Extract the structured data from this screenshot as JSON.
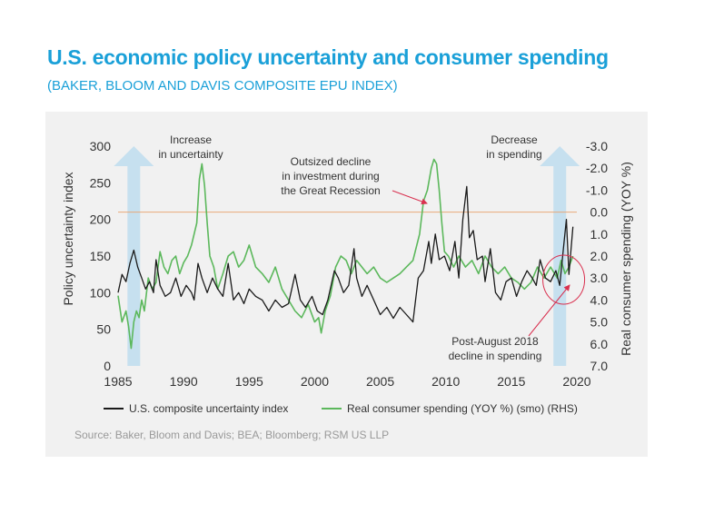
{
  "header": {
    "title": "U.S. economic policy uncertainty and consumer spending",
    "subtitle": "(BAKER, BLOOM AND DAVIS COMPOSITE EPU INDEX)"
  },
  "source": "Source: Baker, Bloom and Davis; BEA; Bloomberg; RSM US LLP",
  "colors": {
    "epu": "#1a1a1a",
    "spending": "#5cb85c",
    "arrow": "#c6e0ef",
    "refline": "#e8a878",
    "annotation_red": "#d9304f",
    "title": "#1aa0d8"
  },
  "chart_data": {
    "type": "line",
    "title": "U.S. economic policy uncertainty and consumer spending",
    "xlabel": "",
    "ylabel": "Policy uncertainty index",
    "y2label": "Real consumer spending (YOY %)",
    "xlim": [
      1985,
      2020
    ],
    "ylim": [
      0,
      300
    ],
    "y2lim": [
      7.0,
      -3.0
    ],
    "x_ticks": [
      "1985",
      "1990",
      "1995",
      "2000",
      "2005",
      "2010",
      "2015",
      "2020"
    ],
    "y_ticks": [
      "0",
      "50",
      "100",
      "150",
      "200",
      "250",
      "300"
    ],
    "y2_ticks": [
      "7.0",
      "6.0",
      "5.0",
      "4.0",
      "3.0",
      "2.0",
      "1.0",
      "0.0",
      "-1.0",
      "-2.0",
      "-3.0"
    ],
    "reference_line": {
      "axis": "y2",
      "value": 0.0
    },
    "series": [
      {
        "name": "U.S. composite uncertainty index",
        "axis": "left",
        "x": [
          1985.0,
          1985.3,
          1985.6,
          1985.9,
          1986.2,
          1986.5,
          1986.8,
          1987.1,
          1987.4,
          1987.7,
          1987.9,
          1988.2,
          1988.6,
          1989.0,
          1989.4,
          1989.8,
          1990.2,
          1990.6,
          1990.8,
          1991.1,
          1991.4,
          1991.8,
          1992.2,
          1992.6,
          1993.0,
          1993.4,
          1993.8,
          1994.2,
          1994.6,
          1995.0,
          1995.5,
          1996.0,
          1996.5,
          1997.0,
          1997.5,
          1998.0,
          1998.5,
          1998.9,
          1999.3,
          1999.8,
          2000.2,
          2000.6,
          2001.0,
          2001.5,
          2001.8,
          2002.2,
          2002.6,
          2003.0,
          2003.2,
          2003.6,
          2004.0,
          2004.5,
          2005.0,
          2005.5,
          2006.0,
          2006.5,
          2007.0,
          2007.5,
          2007.9,
          2008.3,
          2008.7,
          2008.9,
          2009.2,
          2009.5,
          2009.9,
          2010.3,
          2010.7,
          2011.0,
          2011.3,
          2011.6,
          2011.8,
          2012.1,
          2012.4,
          2012.8,
          2013.0,
          2013.4,
          2013.8,
          2014.2,
          2014.6,
          2015.0,
          2015.4,
          2015.8,
          2016.2,
          2016.6,
          2016.9,
          2017.2,
          2017.6,
          2018.0,
          2018.4,
          2018.7,
          2019.0,
          2019.2,
          2019.4,
          2019.7
        ],
        "values": [
          100,
          125,
          115,
          140,
          158,
          135,
          120,
          105,
          115,
          100,
          145,
          110,
          95,
          100,
          120,
          95,
          110,
          100,
          90,
          140,
          120,
          100,
          120,
          105,
          95,
          140,
          90,
          100,
          85,
          105,
          95,
          90,
          75,
          90,
          80,
          85,
          125,
          90,
          80,
          95,
          75,
          70,
          90,
          130,
          120,
          100,
          110,
          160,
          120,
          95,
          110,
          90,
          70,
          80,
          65,
          80,
          70,
          60,
          120,
          130,
          170,
          140,
          180,
          145,
          150,
          130,
          170,
          120,
          200,
          245,
          175,
          185,
          145,
          150,
          115,
          160,
          100,
          90,
          115,
          120,
          95,
          115,
          130,
          120,
          110,
          145,
          120,
          115,
          130,
          110,
          165,
          200,
          125,
          190
        ]
      },
      {
        "name": "Real consumer spending (YOY %) (smo) (RHS)",
        "axis": "right",
        "x": [
          1985.0,
          1985.3,
          1985.6,
          1985.8,
          1986.0,
          1986.2,
          1986.4,
          1986.6,
          1986.8,
          1987.0,
          1987.3,
          1987.6,
          1987.9,
          1988.2,
          1988.5,
          1988.8,
          1989.1,
          1989.4,
          1989.7,
          1990.0,
          1990.3,
          1990.6,
          1990.8,
          1991.0,
          1991.2,
          1991.4,
          1991.6,
          1991.8,
          1992.0,
          1992.3,
          1992.6,
          1993.0,
          1993.4,
          1993.8,
          1994.2,
          1994.6,
          1995.0,
          1995.5,
          1996.0,
          1996.5,
          1997.0,
          1997.5,
          1998.0,
          1998.5,
          1999.0,
          1999.5,
          2000.0,
          2000.3,
          2000.5,
          2000.8,
          2001.2,
          2001.6,
          2002.0,
          2002.4,
          2002.8,
          2003.2,
          2003.6,
          2004.0,
          2004.5,
          2005.0,
          2005.5,
          2006.0,
          2006.5,
          2007.0,
          2007.5,
          2008.0,
          2008.3,
          2008.6,
          2008.9,
          2009.1,
          2009.3,
          2009.5,
          2009.7,
          2009.9,
          2010.2,
          2010.6,
          2011.0,
          2011.5,
          2012.0,
          2012.5,
          2013.0,
          2013.5,
          2014.0,
          2014.5,
          2015.0,
          2015.5,
          2016.0,
          2016.5,
          2017.0,
          2017.5,
          2018.0,
          2018.5,
          2018.8,
          2019.1,
          2019.4,
          2019.7
        ],
        "values": [
          3.8,
          5.0,
          4.5,
          5.2,
          6.2,
          5.0,
          4.5,
          4.8,
          4.0,
          4.5,
          3.0,
          3.5,
          3.2,
          1.8,
          2.5,
          2.8,
          2.2,
          2.0,
          2.8,
          2.3,
          2.0,
          1.5,
          1.0,
          0.5,
          -1.5,
          -2.2,
          -1.2,
          0.5,
          2.0,
          2.5,
          3.5,
          2.8,
          2.0,
          1.8,
          2.5,
          2.2,
          1.5,
          2.5,
          2.8,
          3.2,
          2.5,
          3.5,
          4.0,
          4.5,
          4.8,
          4.2,
          5.0,
          4.8,
          5.5,
          4.5,
          3.8,
          2.5,
          2.0,
          2.2,
          2.8,
          2.2,
          2.5,
          2.8,
          2.5,
          3.0,
          3.2,
          3.0,
          2.8,
          2.5,
          2.2,
          1.0,
          -0.5,
          -1.0,
          -2.0,
          -2.4,
          -2.2,
          -1.0,
          0.5,
          1.8,
          2.0,
          2.5,
          2.0,
          2.5,
          2.2,
          2.8,
          2.0,
          2.5,
          2.8,
          2.5,
          3.0,
          3.2,
          3.5,
          3.2,
          2.5,
          3.0,
          2.5,
          3.0,
          2.2,
          2.8,
          2.5,
          2.0
        ]
      }
    ],
    "annotations": {
      "increase": {
        "line1": "Increase",
        "line2": "in uncertainty"
      },
      "outsized": {
        "line1": "Outsized decline",
        "line2": "in investment during",
        "line3": "the Great Recession"
      },
      "decrease": {
        "line1": "Decrease",
        "line2": "in spending"
      },
      "post_august": {
        "line1": "Post-August 2018",
        "line2": "decline in spending"
      }
    },
    "legend": {
      "placement": "bottom",
      "epu_label": "U.S. composite uncertainty index",
      "spending_label": "Real consumer spending (YOY %) (smo) (RHS)"
    }
  }
}
